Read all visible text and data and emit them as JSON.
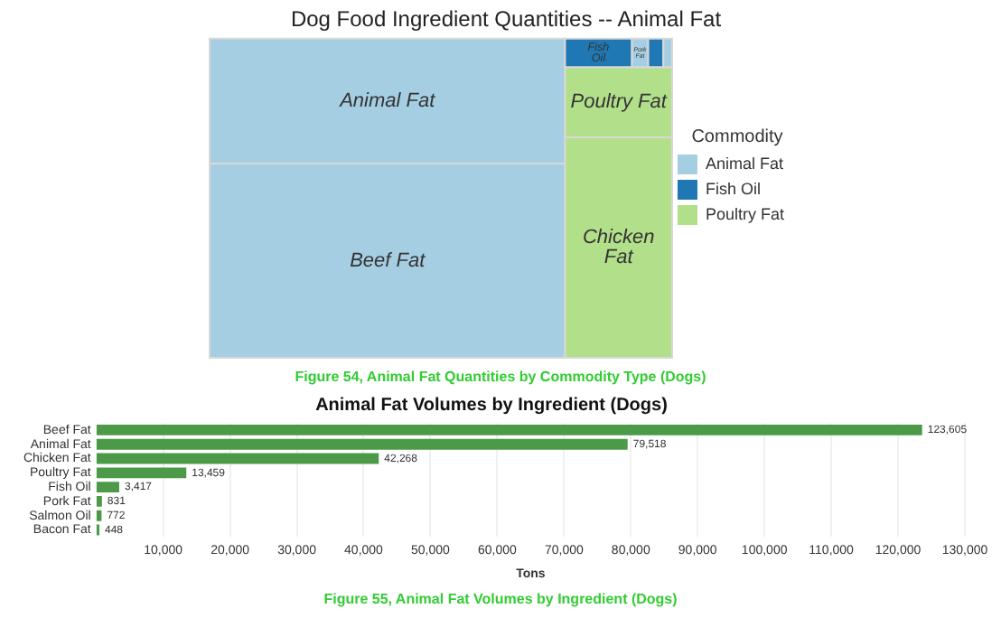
{
  "chart_data": [
    {
      "type": "other",
      "title": "Dog Food Ingredient Quantities -- Animal Fat",
      "legend_title": "Commodity",
      "legend": "right",
      "categories": [
        "Beef Fat",
        "Animal Fat",
        "Chicken Fat",
        "Poultry Fat",
        "Fish Oil",
        "Pork Fat",
        null,
        null
      ],
      "colors": [
        "#a6cee3",
        "#a6cee3",
        "#b2df8a",
        "#b2df8a",
        "#1f78b4",
        "#a6cee3",
        "#1f78b4",
        "#a6cee3"
      ],
      "series": [
        {
          "name": "Animal Fat",
          "color": "#a6cee3",
          "values": [
            null,
            null,
            null,
            null,
            null,
            null,
            null,
            null
          ]
        },
        {
          "name": "Fish Oil",
          "color": "#1f78b4",
          "values": [
            null,
            null,
            null,
            null,
            null,
            null,
            null,
            null
          ]
        },
        {
          "name": "Poultry Fat",
          "color": "#b2df8a",
          "values": [
            null,
            null,
            null,
            null,
            null,
            null,
            null,
            null
          ]
        }
      ],
      "annotations": [
        "Figure 54, Animal Fat Quantities by Commodity Type (Dogs)"
      ]
    },
    {
      "type": "bar",
      "orientation": "horizontal",
      "title": "Animal Fat Volumes by Ingredient (Dogs)",
      "xlabel": "Tons",
      "categories": [
        "Beef Fat",
        "Animal Fat",
        "Chicken Fat",
        "Poultry Fat",
        "Fish Oil",
        "Pork Fat",
        "Salmon Oil",
        "Bacon Fat"
      ],
      "values": [
        123605,
        79518,
        42268,
        13459,
        3417,
        831,
        772,
        448
      ],
      "color": "#4c9a48",
      "value_labels": [
        "123,605",
        "79,518",
        "42,268",
        "13,459",
        "3,417",
        "831",
        "772",
        "448"
      ],
      "xlim": [
        0,
        130000
      ],
      "xticks": [
        {
          "value": 10000,
          "label": "10,000"
        },
        {
          "value": 20000,
          "label": "20,000"
        },
        {
          "value": 30000,
          "label": "30,000"
        },
        {
          "value": 40000,
          "label": "40,000"
        },
        {
          "value": 50000,
          "label": "50,000"
        },
        {
          "value": 60000,
          "label": "60,000"
        },
        {
          "value": 70000,
          "label": "70,000"
        },
        {
          "value": 80000,
          "label": "80,000"
        },
        {
          "value": 90000,
          "label": "90,000"
        },
        {
          "value": 100000,
          "label": "100,000"
        },
        {
          "value": 110000,
          "label": "110,000"
        },
        {
          "value": 120000,
          "label": "120,000"
        },
        {
          "value": 130000,
          "label": "130,000"
        }
      ],
      "grid": "x",
      "legend": false,
      "annotations": [
        "Figure 55, Animal Fat Volumes by Ingredient (Dogs)"
      ]
    }
  ]
}
